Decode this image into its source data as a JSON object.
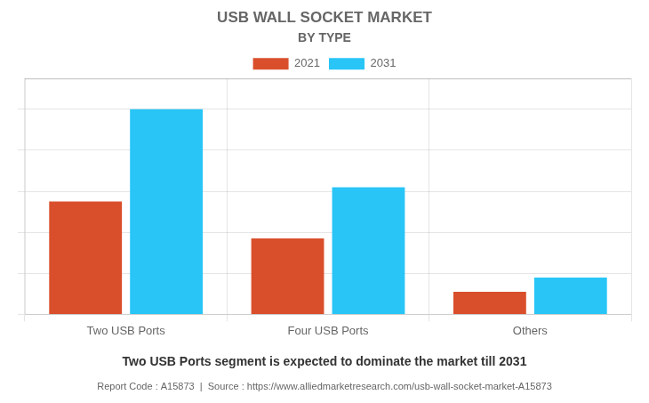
{
  "chart_data": {
    "type": "bar",
    "title": "USB WALL SOCKET MARKET",
    "subtitle": "BY TYPE",
    "categories": [
      "Two USB Ports",
      "Four USB Ports",
      "Others"
    ],
    "series": [
      {
        "name": "2021",
        "color": "#D94F2B",
        "values": [
          55,
          37,
          11
        ]
      },
      {
        "name": "2031",
        "color": "#29C5F6",
        "values": [
          100,
          62,
          18
        ]
      }
    ],
    "ylim": [
      0,
      115
    ],
    "yticks": [
      0,
      20,
      40,
      60,
      80,
      100
    ],
    "grid": true,
    "legend": "top",
    "tick_labels": "x",
    "annotations": [
      "Two USB Ports segment is expected to dominate the market till 2031",
      "Report Code : A15873  |  Source : https://www.alliedmarketresearch.com/usb-wall-socket-market-A15873"
    ]
  }
}
